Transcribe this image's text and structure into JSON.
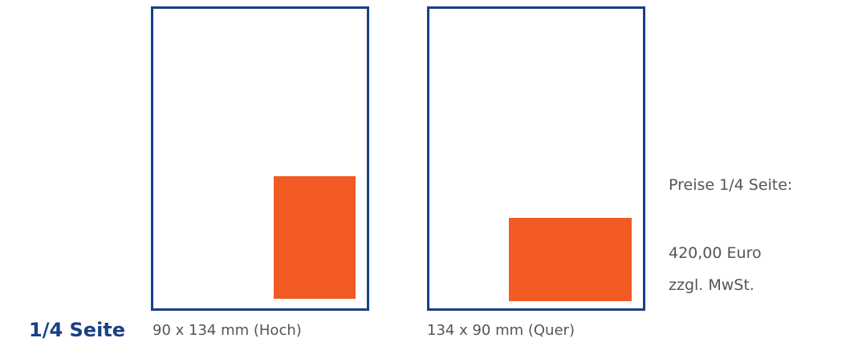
{
  "title": "1/4 Seite",
  "formats": [
    {
      "caption": "90 x 134 mm (Hoch)",
      "orientation": "portrait"
    },
    {
      "caption": "134 x 90 mm (Quer)",
      "orientation": "landscape"
    }
  ],
  "prices": {
    "heading": "Preise 1/4 Seite:",
    "amount": "420,00 Euro",
    "tax_note": "zzgl. MwSt."
  },
  "colors": {
    "frame": "#1a3f87",
    "ad": "#f15a22",
    "title": "#1a3f87",
    "text": "#555555"
  }
}
